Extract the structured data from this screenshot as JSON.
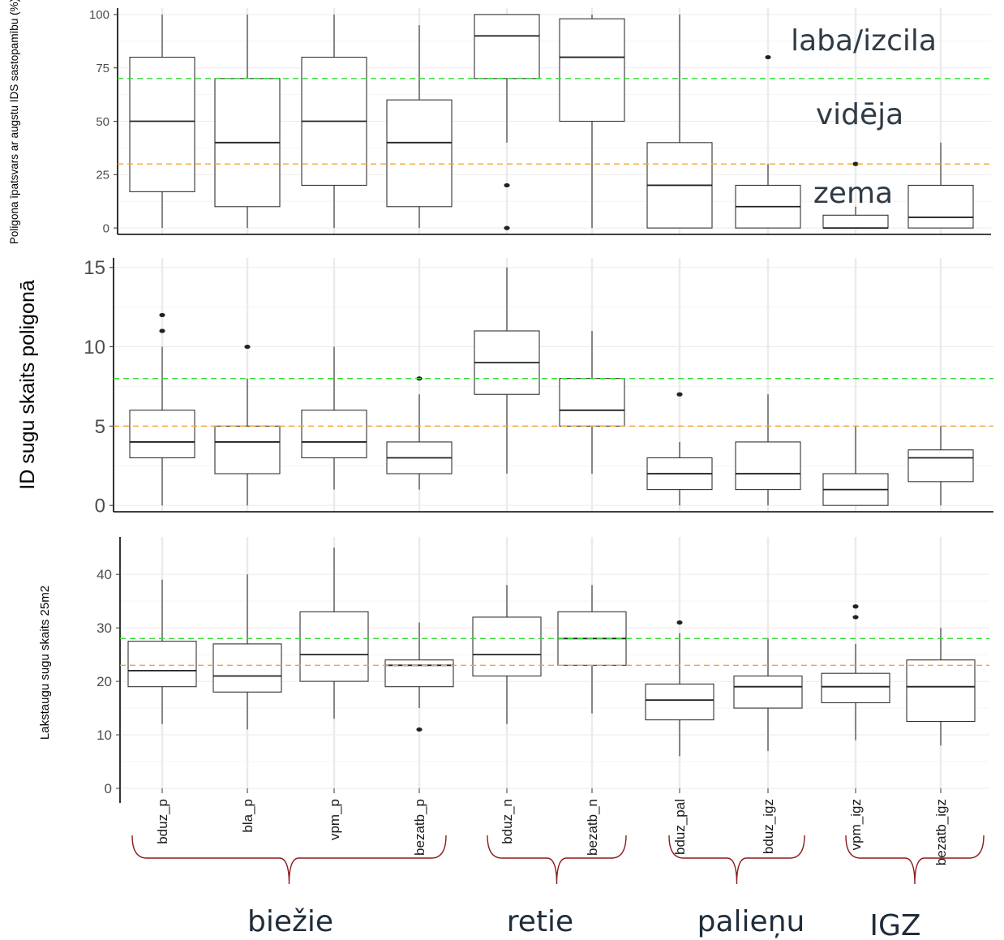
{
  "chart_data": [
    {
      "type": "box",
      "ylabel": "Poligona īpatsvars ar augstu IDS sastopamību (%)",
      "yticks": [
        0,
        25,
        50,
        75,
        100
      ],
      "ylim": [
        -3,
        103
      ],
      "grid": true,
      "reference_lines": [
        {
          "value": 70,
          "color": "#33dd33"
        },
        {
          "value": 30,
          "color": "#f0a830"
        }
      ],
      "annotations": [
        "laba/izcila",
        "vidēja",
        "zema"
      ],
      "boxes": [
        {
          "lo": 0,
          "q1": 17,
          "med": 50,
          "q3": 80,
          "hi": 100,
          "out": []
        },
        {
          "lo": 0,
          "q1": 10,
          "med": 40,
          "q3": 70,
          "hi": 100,
          "out": []
        },
        {
          "lo": 0,
          "q1": 20,
          "med": 50,
          "q3": 80,
          "hi": 100,
          "out": []
        },
        {
          "lo": 0,
          "q1": 10,
          "med": 40,
          "q3": 60,
          "hi": 95,
          "out": []
        },
        {
          "lo": 40,
          "q1": 70,
          "med": 90,
          "q3": 100,
          "hi": 100,
          "out": [
            20,
            0
          ]
        },
        {
          "lo": 0,
          "q1": 50,
          "med": 80,
          "q3": 98,
          "hi": 100,
          "out": []
        },
        {
          "lo": 0,
          "q1": 0,
          "med": 20,
          "q3": 40,
          "hi": 100,
          "out": []
        },
        {
          "lo": 0,
          "q1": 0,
          "med": 10,
          "q3": 20,
          "hi": 30,
          "out": [
            80
          ]
        },
        {
          "lo": 0,
          "q1": 0,
          "med": 0,
          "q3": 6,
          "hi": 10,
          "out": [
            30
          ]
        },
        {
          "lo": 0,
          "q1": 0,
          "med": 5,
          "q3": 20,
          "hi": 40,
          "out": []
        }
      ]
    },
    {
      "type": "box",
      "ylabel": "ID sugu skaits poligonā",
      "yticks": [
        0,
        5,
        10,
        15
      ],
      "ylim": [
        -0.4,
        15.6
      ],
      "grid": true,
      "reference_lines": [
        {
          "value": 8,
          "color": "#33dd33"
        },
        {
          "value": 5,
          "color": "#f0a830"
        }
      ],
      "boxes": [
        {
          "lo": 0,
          "q1": 3,
          "med": 4,
          "q3": 6,
          "hi": 10,
          "out": [
            11,
            12
          ]
        },
        {
          "lo": 0,
          "q1": 2,
          "med": 4,
          "q3": 5,
          "hi": 8,
          "out": [
            10
          ]
        },
        {
          "lo": 1,
          "q1": 3,
          "med": 4,
          "q3": 6,
          "hi": 10,
          "out": []
        },
        {
          "lo": 1,
          "q1": 2,
          "med": 3,
          "q3": 4,
          "hi": 7,
          "out": [
            8
          ]
        },
        {
          "lo": 2,
          "q1": 7,
          "med": 9,
          "q3": 11,
          "hi": 15,
          "out": []
        },
        {
          "lo": 2,
          "q1": 5,
          "med": 6,
          "q3": 8,
          "hi": 11,
          "out": []
        },
        {
          "lo": 0,
          "q1": 1,
          "med": 2,
          "q3": 3,
          "hi": 4,
          "out": [
            7
          ]
        },
        {
          "lo": 0,
          "q1": 1,
          "med": 2,
          "q3": 4,
          "hi": 7,
          "out": []
        },
        {
          "lo": 0,
          "q1": 0,
          "med": 1,
          "q3": 2,
          "hi": 5,
          "out": []
        },
        {
          "lo": 0,
          "q1": 1.5,
          "med": 3,
          "q3": 3.5,
          "hi": 5,
          "out": []
        }
      ]
    },
    {
      "type": "box",
      "ylabel": "Lakstaugu sugu skaits 25m2",
      "yticks": [
        0,
        10,
        20,
        30,
        40
      ],
      "ylim": [
        0,
        47
      ],
      "grid": true,
      "reference_lines": [
        {
          "value": 28,
          "color": "#33dd33"
        },
        {
          "value": 23,
          "color": "#f0a830"
        }
      ],
      "boxes": [
        {
          "lo": 12,
          "q1": 19,
          "med": 22,
          "q3": 27.5,
          "hi": 39,
          "out": []
        },
        {
          "lo": 11,
          "q1": 18,
          "med": 21,
          "q3": 27,
          "hi": 40,
          "out": []
        },
        {
          "lo": 13,
          "q1": 20,
          "med": 25,
          "q3": 33,
          "hi": 45,
          "out": []
        },
        {
          "lo": 15,
          "q1": 19,
          "med": 23,
          "q3": 24,
          "hi": 31,
          "out": [
            11
          ]
        },
        {
          "lo": 12,
          "q1": 21,
          "med": 25,
          "q3": 32,
          "hi": 38,
          "out": []
        },
        {
          "lo": 14,
          "q1": 23,
          "med": 28,
          "q3": 33,
          "hi": 38,
          "out": []
        },
        {
          "lo": 6,
          "q1": 12.8,
          "med": 16.5,
          "q3": 19.5,
          "hi": 29,
          "out": [
            31
          ]
        },
        {
          "lo": 7,
          "q1": 15,
          "med": 19,
          "q3": 21,
          "hi": 28,
          "out": []
        },
        {
          "lo": 9,
          "q1": 16,
          "med": 19,
          "q3": 21.5,
          "hi": 27,
          "out": [
            32,
            34
          ]
        },
        {
          "lo": 8,
          "q1": 12.5,
          "med": 19,
          "q3": 24,
          "hi": 30,
          "out": []
        }
      ]
    }
  ],
  "categories": [
    "bduz_p",
    "bla_p",
    "vpm_p",
    "bezatb_p",
    "bduz_n",
    "bezatb_n",
    "bduz_pal",
    "bduz_igz",
    "vpm_igz",
    "bezatb_igz"
  ],
  "groups": [
    {
      "label": "biežie",
      "from": 0,
      "to": 3
    },
    {
      "label": "retie",
      "from": 4,
      "to": 5
    },
    {
      "label": "palieņu",
      "from": 6,
      "to": 7
    },
    {
      "label": "IGZ",
      "from": 8,
      "to": 9
    }
  ],
  "colors": {
    "box_line": "#333333",
    "grid": "#ebebeb",
    "good": "#33dd33",
    "mid": "#f0a830",
    "brace": "#8b1a1a",
    "annotation": "#2f3b45"
  }
}
